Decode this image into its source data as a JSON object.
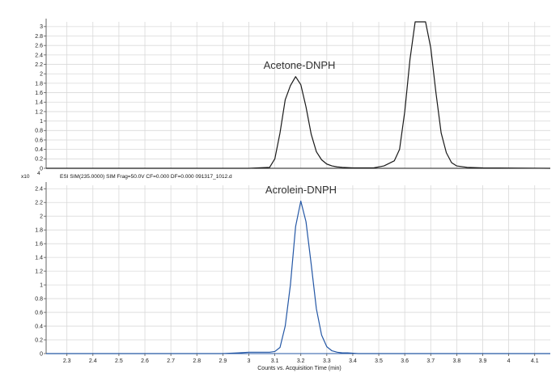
{
  "chart_data": [
    {
      "type": "line",
      "annotation": "Acetone-DNPH",
      "y_ticks": [
        "0",
        "0.2",
        "0.4",
        "0.6",
        "0.8",
        "1",
        "1.2",
        "1.4",
        "1.6",
        "1.8",
        "2",
        "2.2",
        "2.4",
        "2.6",
        "2.8",
        "3"
      ],
      "ylim": [
        0,
        3.1
      ],
      "xlim": [
        2.22,
        4.16
      ],
      "line_color": "#1a1a1a",
      "grid": true,
      "series": [
        {
          "x": [
            2.22,
            3.0,
            3.08,
            3.1,
            3.12,
            3.14,
            3.16,
            3.18,
            3.2,
            3.22,
            3.24,
            3.26,
            3.28,
            3.3,
            3.32,
            3.34,
            3.36,
            3.4,
            3.48,
            3.52,
            3.56,
            3.58,
            3.6,
            3.62,
            3.64,
            3.66,
            3.68,
            3.7,
            3.72,
            3.74,
            3.76,
            3.78,
            3.8,
            3.84,
            3.9,
            4.16
          ],
          "y": [
            0.0,
            0.0,
            0.02,
            0.2,
            0.75,
            1.45,
            1.75,
            1.94,
            1.77,
            1.3,
            0.72,
            0.35,
            0.18,
            0.09,
            0.05,
            0.03,
            0.02,
            0.01,
            0.01,
            0.05,
            0.16,
            0.4,
            1.2,
            2.3,
            3.1,
            3.1,
            3.1,
            2.55,
            1.6,
            0.75,
            0.33,
            0.12,
            0.05,
            0.02,
            0.01,
            0.0
          ]
        }
      ]
    },
    {
      "type": "line",
      "annotation": "Acrolein-DNPH",
      "info_text": "ESI SIM(235.0000) SIM Frag=50.0V CF=0.000 DF=0.000 091317_1012.d",
      "y_multiplier": "x10",
      "y_multiplier_exp": "4",
      "y_ticks": [
        "0",
        "0.2",
        "0.4",
        "0.6",
        "0.8",
        "1",
        "1.2",
        "1.4",
        "1.6",
        "1.8",
        "2",
        "2.2",
        "2.4"
      ],
      "ylim": [
        0,
        2.45
      ],
      "xlim": [
        2.22,
        4.16
      ],
      "x_ticks": [
        "2.3",
        "2.4",
        "2.5",
        "2.6",
        "2.7",
        "2.8",
        "2.9",
        "3",
        "3.1",
        "3.2",
        "3.3",
        "3.4",
        "3.5",
        "3.6",
        "3.7",
        "3.8",
        "3.9",
        "4",
        "4.1"
      ],
      "xlabel": "Counts vs. Acquisition Time (min)",
      "line_color": "#2457a5",
      "grid": true,
      "series": [
        {
          "x": [
            2.22,
            2.9,
            2.96,
            3.0,
            3.04,
            3.08,
            3.1,
            3.12,
            3.14,
            3.16,
            3.18,
            3.2,
            3.22,
            3.24,
            3.26,
            3.28,
            3.3,
            3.32,
            3.34,
            3.36,
            3.38,
            3.42,
            3.5,
            3.6,
            4.16
          ],
          "y": [
            0.0,
            0.0,
            0.01,
            0.02,
            0.02,
            0.02,
            0.03,
            0.09,
            0.4,
            1.0,
            1.85,
            2.22,
            1.92,
            1.3,
            0.65,
            0.27,
            0.1,
            0.04,
            0.02,
            0.01,
            0.01,
            0.0,
            0.0,
            0.0,
            0.0
          ]
        }
      ]
    }
  ]
}
